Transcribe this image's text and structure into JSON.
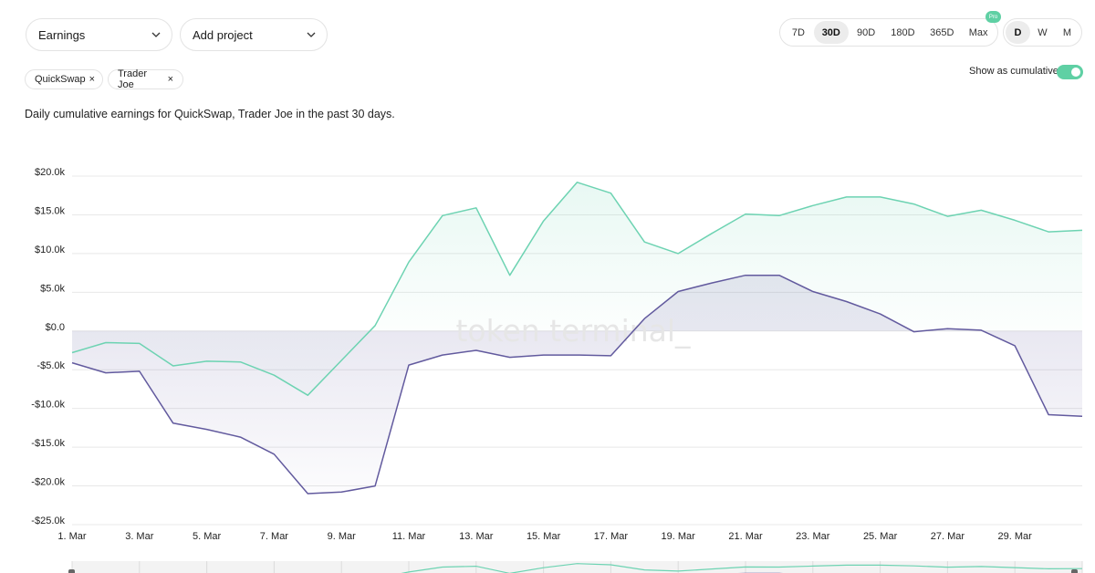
{
  "controls": {
    "metric_dropdown": "Earnings",
    "project_dropdown": "Add project",
    "ranges": [
      "7D",
      "30D",
      "90D",
      "180D",
      "365D",
      "Max"
    ],
    "active_range": "30D",
    "pro_badge": "Pro",
    "granularity": [
      "D",
      "W",
      "M"
    ],
    "active_granularity": "D",
    "cumulative_label": "Show as cumulative",
    "cumulative_on": true
  },
  "chips": [
    {
      "label": "QuickSwap",
      "remove": "×"
    },
    {
      "label": "Trader Joe",
      "remove": "×"
    }
  ],
  "description": "Daily cumulative earnings for QuickSwap, Trader Joe in the past 30 days.",
  "watermark": "token terminal_",
  "colors": {
    "series_a": "#6dd3b2",
    "series_b": "#625a9e",
    "accent": "#5fd0a4"
  },
  "chart_data": {
    "type": "area",
    "title": "",
    "xlabel": "",
    "ylabel": "",
    "ylim": [
      -25000,
      20000
    ],
    "yticks": [
      20000,
      15000,
      10000,
      5000,
      0,
      -5000,
      -10000,
      -15000,
      -20000,
      -25000
    ],
    "ytick_labels": [
      "$20.0k",
      "$15.0k",
      "$10.0k",
      "$5.0k",
      "$0.0",
      "-$5.0k",
      "-$10.0k",
      "-$15.0k",
      "-$20.0k",
      "-$25.0k"
    ],
    "x": [
      "1. Mar",
      "2. Mar",
      "3. Mar",
      "4. Mar",
      "5. Mar",
      "6. Mar",
      "7. Mar",
      "8. Mar",
      "9. Mar",
      "10. Mar",
      "11. Mar",
      "12. Mar",
      "13. Mar",
      "14. Mar",
      "15. Mar",
      "16. Mar",
      "17. Mar",
      "18. Mar",
      "19. Mar",
      "20. Mar",
      "21. Mar",
      "22. Mar",
      "23. Mar",
      "24. Mar",
      "25. Mar",
      "26. Mar",
      "27. Mar",
      "28. Mar",
      "29. Mar",
      "30. Mar",
      "31. Mar"
    ],
    "xtick_labels": [
      "1. Mar",
      "3. Mar",
      "5. Mar",
      "7. Mar",
      "9. Mar",
      "11. Mar",
      "13. Mar",
      "15. Mar",
      "17. Mar",
      "19. Mar",
      "21. Mar",
      "23. Mar",
      "25. Mar",
      "27. Mar",
      "29. Mar"
    ],
    "series": [
      {
        "name": "QuickSwap",
        "color": "#6dd3b2",
        "values": [
          -2800,
          -1500,
          -1600,
          -4500,
          -3900,
          -4000,
          -5700,
          -8300,
          -3800,
          700,
          8900,
          14900,
          15900,
          7200,
          14200,
          19200,
          17800,
          11500,
          10000,
          12600,
          15100,
          14900,
          16200,
          17300,
          17300,
          16400,
          14800,
          15600,
          14300,
          12800,
          13000
        ]
      },
      {
        "name": "Trader Joe",
        "color": "#625a9e",
        "values": [
          -4100,
          -5400,
          -5200,
          -11900,
          -12700,
          -13700,
          -15900,
          -21000,
          -20800,
          -20000,
          -4400,
          -3100,
          -2500,
          -3400,
          -3100,
          -3100,
          -3200,
          1600,
          5100,
          6200,
          7200,
          7200,
          5100,
          3800,
          2200,
          -100,
          300,
          100,
          -1900,
          -10800,
          -11000
        ]
      }
    ],
    "grid": true,
    "legend": "none"
  }
}
